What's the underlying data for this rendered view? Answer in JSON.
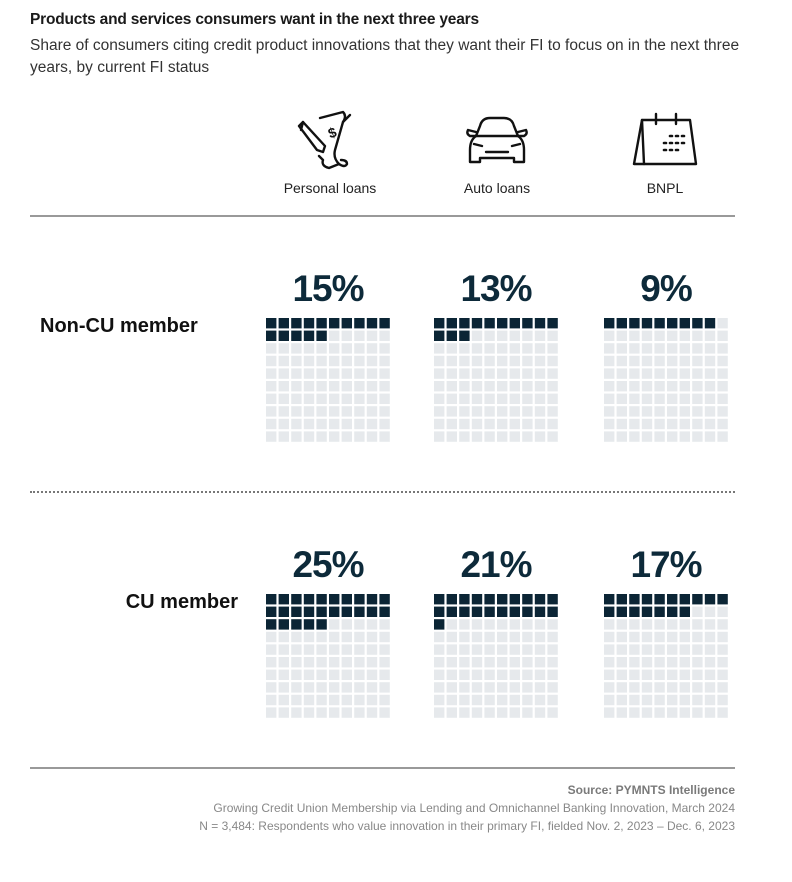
{
  "header": {
    "title": "Products and services consumers want in the next three years",
    "subtitle": "Share of consumers citing credit product innovations that they want their FI to focus on in the next three years, by current FI status"
  },
  "chart_data": {
    "type": "waffle",
    "categories": [
      "Personal loans",
      "Auto loans",
      "BNPL"
    ],
    "category_icons": [
      "loan-document-icon",
      "car-icon",
      "calendar-icon"
    ],
    "units_per_grid": 100,
    "series": [
      {
        "name": "Non-CU member",
        "values": [
          15,
          13,
          9
        ],
        "labels": [
          "15%",
          "13%",
          "9%"
        ]
      },
      {
        "name": "CU member",
        "values": [
          25,
          21,
          17
        ],
        "labels": [
          "25%",
          "21%",
          "17%"
        ]
      }
    ],
    "colors": {
      "filled": "#0b2535",
      "empty": "#e6e9ec"
    }
  },
  "footer": {
    "source": "Source: PYMNTS Intelligence",
    "report": "Growing Credit Union Membership via Lending and Omnichannel Banking Innovation, March 2024",
    "note": "N = 3,484: Respondents who value innovation in their primary FI, fielded Nov. 2, 2023 – Dec. 6, 2023"
  }
}
